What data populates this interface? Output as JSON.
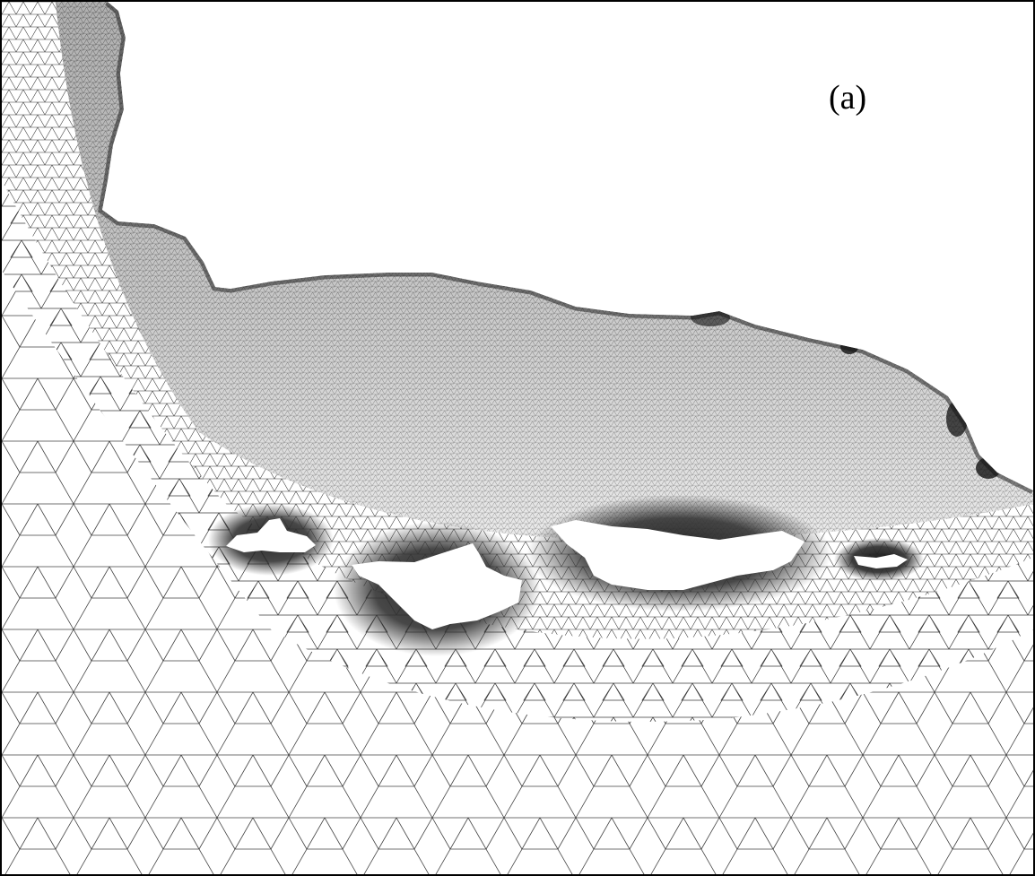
{
  "figure": {
    "panel_label": "(a)",
    "colors": {
      "background": "#ffffff",
      "mesh_line": "#1a1a1a",
      "border": "#000000"
    }
  }
}
